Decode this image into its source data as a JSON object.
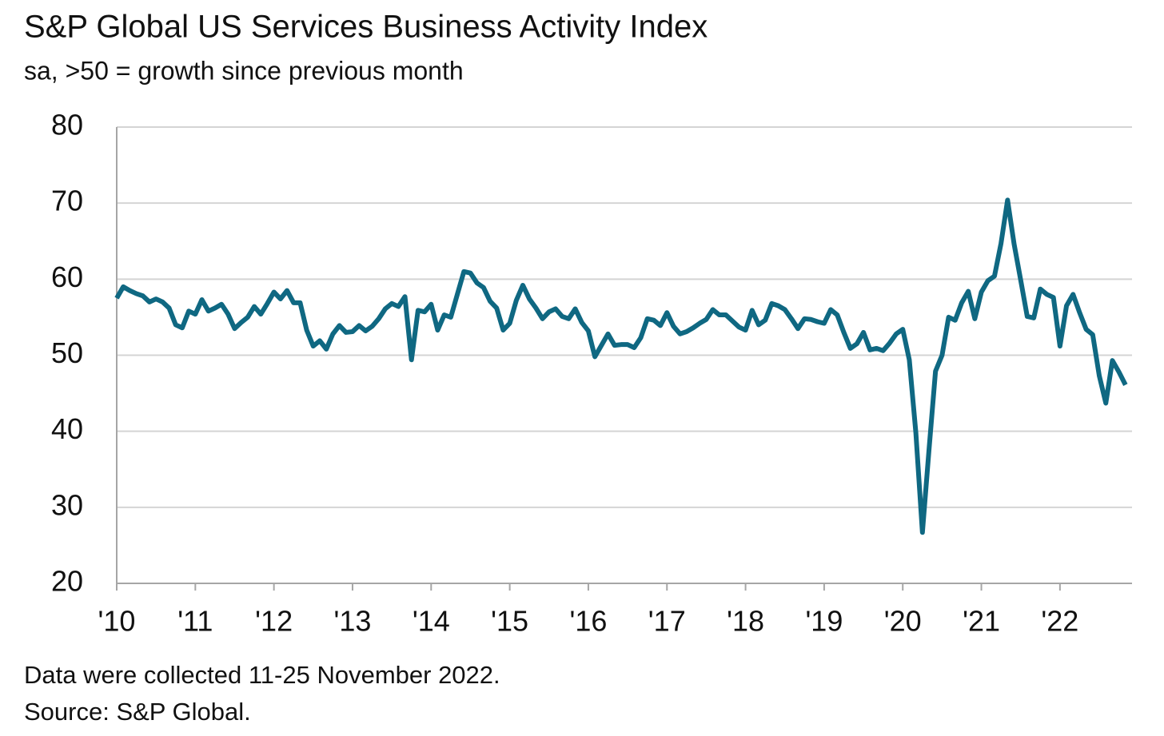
{
  "chart_data": {
    "type": "line",
    "title": "S&P Global US Services Business Activity Index",
    "subtitle": "sa, >50 = growth since previous month",
    "footnotes": [
      "Data were collected 11-25 November 2022.",
      "Source: S&P Global."
    ],
    "categories": [
      "'10",
      null,
      null,
      null,
      null,
      null,
      null,
      null,
      null,
      null,
      null,
      null,
      "'11",
      null,
      null,
      null,
      null,
      null,
      null,
      null,
      null,
      null,
      null,
      null,
      "'12",
      null,
      null,
      null,
      null,
      null,
      null,
      null,
      null,
      null,
      null,
      null,
      "'13",
      null,
      null,
      null,
      null,
      null,
      null,
      null,
      null,
      null,
      null,
      null,
      "'14",
      null,
      null,
      null,
      null,
      null,
      null,
      null,
      null,
      null,
      null,
      null,
      "'15",
      null,
      null,
      null,
      null,
      null,
      null,
      null,
      null,
      null,
      null,
      null,
      "'16",
      null,
      null,
      null,
      null,
      null,
      null,
      null,
      null,
      null,
      null,
      null,
      "'17",
      null,
      null,
      null,
      null,
      null,
      null,
      null,
      null,
      null,
      null,
      null,
      "'18",
      null,
      null,
      null,
      null,
      null,
      null,
      null,
      null,
      null,
      null,
      null,
      "'19",
      null,
      null,
      null,
      null,
      null,
      null,
      null,
      null,
      null,
      null,
      null,
      "'20",
      null,
      null,
      null,
      null,
      null,
      null,
      null,
      null,
      null,
      null,
      null,
      "'21",
      null,
      null,
      null,
      null,
      null,
      null,
      null,
      null,
      null,
      null,
      null,
      "'22",
      null,
      null,
      null,
      null,
      null,
      null,
      null,
      null,
      null,
      null
    ],
    "series": [
      {
        "color": "#0f6882",
        "values": [
          57.5,
          59.0,
          58.5,
          58.1,
          57.8,
          57.0,
          57.4,
          57.0,
          56.2,
          54.0,
          53.6,
          55.8,
          55.4,
          57.3,
          55.8,
          56.2,
          56.7,
          55.4,
          53.5,
          54.3,
          55.0,
          56.4,
          55.4,
          56.8,
          58.3,
          57.4,
          58.5,
          56.9,
          56.9,
          53.3,
          51.2,
          51.9,
          50.8,
          52.8,
          53.9,
          53.0,
          53.1,
          53.9,
          53.2,
          53.8,
          54.8,
          56.1,
          56.8,
          56.4,
          57.7,
          49.4,
          55.9,
          55.7,
          56.7,
          53.3,
          55.3,
          55.0,
          58.0,
          61.0,
          60.8,
          59.5,
          58.9,
          57.1,
          56.2,
          53.3,
          54.2,
          57.2,
          59.2,
          57.4,
          56.2,
          54.8,
          55.7,
          56.1,
          55.1,
          54.8,
          56.1,
          54.3,
          53.2,
          49.8,
          51.3,
          52.8,
          51.3,
          51.4,
          51.4,
          51.0,
          52.3,
          54.8,
          54.6,
          53.9,
          55.6,
          53.8,
          52.8,
          53.1,
          53.6,
          54.2,
          54.7,
          56.0,
          55.3,
          55.3,
          54.5,
          53.7,
          53.3,
          55.9,
          54.0,
          54.6,
          56.8,
          56.5,
          56.0,
          54.8,
          53.5,
          54.8,
          54.7,
          54.4,
          54.2,
          56.0,
          55.3,
          53.0,
          50.9,
          51.5,
          53.0,
          50.7,
          50.9,
          50.6,
          51.6,
          52.8,
          53.4,
          49.4,
          39.8,
          26.7,
          37.5,
          47.9,
          50.0,
          55.0,
          54.6,
          56.9,
          58.4,
          54.8,
          58.3,
          59.8,
          60.4,
          64.7,
          70.4,
          64.6,
          59.9,
          55.1,
          54.9,
          58.7,
          58.0,
          57.6,
          51.2,
          56.5,
          58.0,
          55.6,
          53.4,
          52.7,
          47.3,
          43.7,
          49.3,
          47.8,
          46.1
        ]
      }
    ],
    "ylim": [
      20,
      80
    ],
    "yticks": [
      20,
      30,
      40,
      50,
      60,
      70,
      80
    ],
    "grid": true
  }
}
